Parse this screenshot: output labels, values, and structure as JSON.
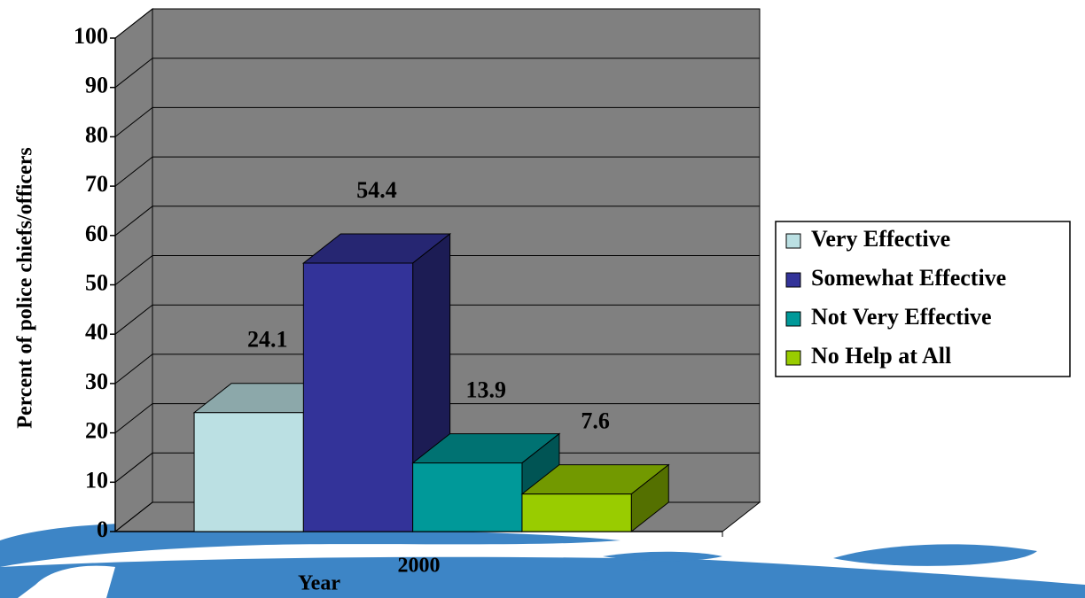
{
  "chart_data": {
    "type": "bar3d",
    "categories": [
      "2000"
    ],
    "x_label": "Year",
    "y_label": "Percent of police chiefs/officers",
    "series": [
      {
        "name": "Very Effective",
        "color": "#bbe0e3",
        "values": [
          24.1
        ]
      },
      {
        "name": "Somewhat Effective",
        "color": "#333399",
        "values": [
          54.4
        ]
      },
      {
        "name": "Not Very Effective",
        "color": "#009999",
        "values": [
          13.9
        ]
      },
      {
        "name": "No Help at All",
        "color": "#99cc00",
        "values": [
          7.6
        ]
      }
    ],
    "ylim": [
      0,
      100
    ],
    "yticks": [
      0,
      10,
      20,
      30,
      40,
      50,
      60,
      70,
      80,
      90,
      100
    ],
    "grid": true,
    "legend": "right"
  }
}
